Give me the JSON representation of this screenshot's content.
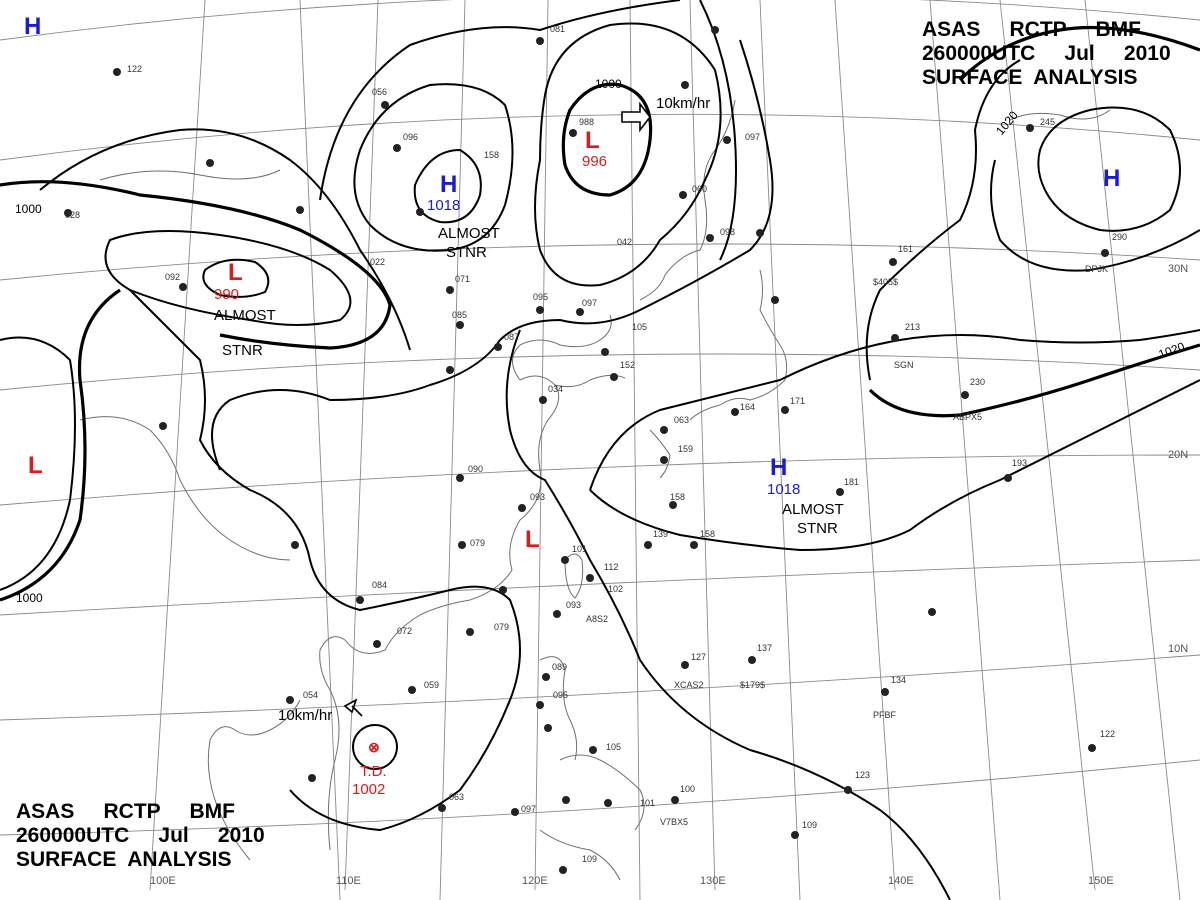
{
  "header_top": {
    "line1": "ASAS     RCTP     BMF",
    "line2": "260000UTC     Jul     2010",
    "line3": "SURFACE  ANALYSIS"
  },
  "header_bottom": {
    "line1": "ASAS     RCTP     BMF",
    "line2": "260000UTC     Jul     2010",
    "line3": "SURFACE  ANALYSIS"
  },
  "colors": {
    "high": "#1a1adb",
    "low": "#e01818",
    "isobar": "#000000",
    "grid": "#8a8a8a"
  },
  "pressure_centers": [
    {
      "id": "high-nw-corner",
      "symbol": "H",
      "value": ""
    },
    {
      "id": "high-north",
      "symbol": "H",
      "value": "1018"
    },
    {
      "id": "low-north",
      "symbol": "L",
      "value": "996"
    },
    {
      "id": "high-ne",
      "symbol": "H",
      "value": ""
    },
    {
      "id": "low-west",
      "symbol": "L",
      "value": "990"
    },
    {
      "id": "low-far-west",
      "symbol": "L",
      "value": ""
    },
    {
      "id": "high-pacific",
      "symbol": "H",
      "value": "1018"
    },
    {
      "id": "low-taiwan-strait",
      "symbol": "L",
      "value": ""
    }
  ],
  "tropical_depression": {
    "label": "T.D.",
    "value": "1002",
    "motion": "10km/hr"
  },
  "low_north_motion": "10km/hr",
  "notes": {
    "stnr_north": [
      "ALMOST",
      "STNR"
    ],
    "stnr_west": [
      "ALMOST",
      "STNR"
    ],
    "stnr_pacific": [
      "ALMOST",
      "STNR"
    ]
  },
  "isobar_labels": [
    "1000",
    "1000",
    "1000",
    "1020",
    "1020"
  ],
  "longitudes": [
    "100E",
    "110E",
    "120E",
    "130E",
    "140E",
    "150E"
  ],
  "latitudes": [
    "30N",
    "20N",
    "10N"
  ],
  "station_values": [
    "081",
    "122",
    "056",
    "096",
    "158",
    "988",
    "098",
    "097",
    "028",
    "022",
    "071",
    "095",
    "085",
    "097",
    "087",
    "105",
    "034",
    "152",
    "093",
    "090",
    "079",
    "084",
    "072",
    "054",
    "059",
    "063",
    "097",
    "109",
    "100",
    "101",
    "105",
    "089",
    "095",
    "079",
    "093",
    "102",
    "112",
    "101",
    "158",
    "139",
    "158",
    "063",
    "159",
    "164",
    "171",
    "181",
    "193",
    "161",
    "213",
    "230",
    "290",
    "245",
    "134",
    "127",
    "137",
    "122",
    "123",
    "109",
    "060",
    "042",
    "092"
  ],
  "station_ids": [
    "$405$",
    "DPJK",
    "SGN",
    "ABPX5",
    "XCAS2",
    "$179$",
    "PFBF",
    "A8S2",
    "V7BX5"
  ]
}
